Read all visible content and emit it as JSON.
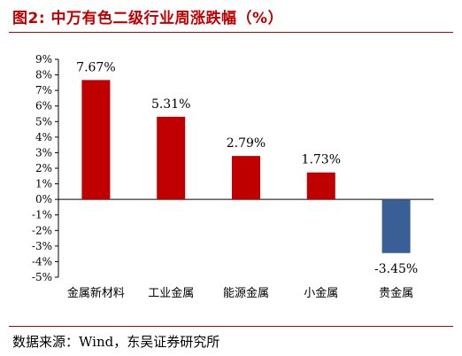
{
  "title": "图2:  中万有色二级行业周涨跌幅（%）",
  "source": "数据来源：Wind，东吴证券研究所",
  "colors": {
    "title": "#c00000",
    "positive_bar": "#c00000",
    "negative_bar": "#3a5f96",
    "axis": "#000000"
  },
  "chart_data": {
    "type": "bar",
    "categories": [
      "金属新材料",
      "工业金属",
      "能源金属",
      "小金属",
      "贵金属"
    ],
    "values": [
      7.67,
      5.31,
      2.79,
      1.73,
      -3.45
    ],
    "value_labels": [
      "7.67%",
      "5.31%",
      "2.79%",
      "1.73%",
      "-3.45%"
    ],
    "ylim": [
      -5,
      9
    ],
    "yticks": [
      9,
      8,
      7,
      6,
      5,
      4,
      3,
      2,
      1,
      0,
      -1,
      -2,
      -3,
      -4,
      -5
    ],
    "ytick_labels": [
      "9%",
      "8%",
      "7%",
      "6%",
      "5%",
      "4%",
      "3%",
      "2%",
      "1%",
      "0%",
      "-1%",
      "-2%",
      "-3%",
      "-4%",
      "-5%"
    ],
    "xlabel": "",
    "ylabel": "",
    "grid": false,
    "legend": "none"
  }
}
